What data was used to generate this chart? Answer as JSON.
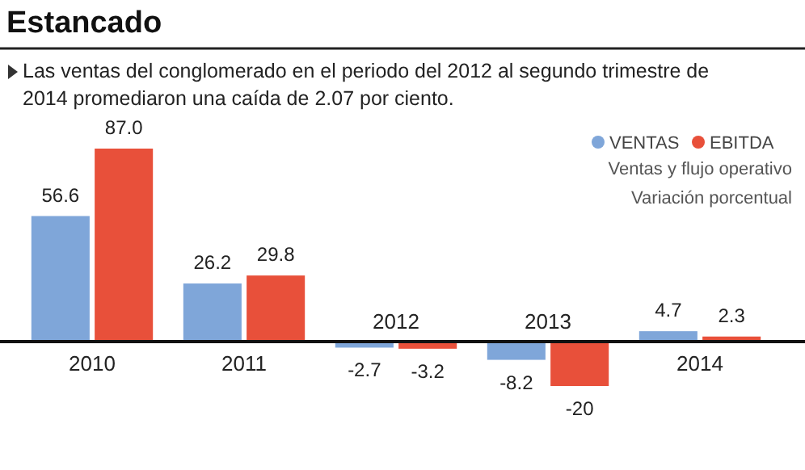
{
  "chart_data": {
    "type": "bar",
    "title": "Estancado",
    "subtitle": "Las ventas del conglomerado en el periodo del 2012 al segundo trimestre de 2014 promediaron una caída de 2.07 por ciento.",
    "categories": [
      "2010",
      "2011",
      "2012",
      "2013",
      "2014"
    ],
    "series": [
      {
        "name": "VENTAS",
        "color": "#7fa6d9",
        "values": [
          56.6,
          26.2,
          -2.7,
          -8.2,
          4.7
        ],
        "value_labels": [
          "56.6",
          "26.2",
          "-2.7",
          "-8.2",
          "4.7"
        ]
      },
      {
        "name": "EBITDA",
        "color": "#e8503a",
        "values": [
          87.0,
          29.8,
          -3.2,
          -20,
          2.3
        ],
        "value_labels": [
          "87.0",
          "29.8",
          "-3.2",
          "-20",
          "2.3"
        ]
      }
    ],
    "legend": "top right",
    "annotations": [
      "Ventas y flujo operativo",
      "Variación porcentual"
    ]
  }
}
